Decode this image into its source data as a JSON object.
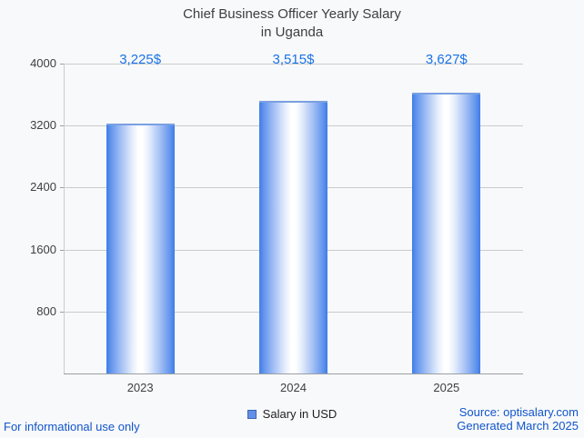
{
  "chart_data": {
    "type": "bar",
    "title": "Chief Business Officer Yearly Salary in Uganda",
    "title_lines": [
      "Chief Business Officer Yearly Salary",
      "in Uganda"
    ],
    "categories": [
      "2023",
      "2024",
      "2025"
    ],
    "values": [
      3225,
      3515,
      3627
    ],
    "value_labels": [
      "3,225$",
      "3,515$",
      "3,627$"
    ],
    "xlabel": "",
    "ylabel": "",
    "ylim": [
      0,
      4000
    ],
    "yticks": [
      4000,
      3200,
      2400,
      1600,
      800
    ],
    "grid": true,
    "legend": {
      "label": "Salary in USD",
      "position": "bottom"
    }
  },
  "footer": {
    "disclaimer": "For informational use only",
    "source": "Source: optisalary.com",
    "generated": "Generated March 2025"
  },
  "colors": {
    "background": "#f8f9fa",
    "accent_blue": "#1a73e8",
    "link_blue": "#1155cc",
    "bar_edge_blue": "#3f7ce6",
    "bar_mid_white": "#ffffff",
    "gridline_gray": "#cccccc",
    "axis_gray": "#9aa0a6",
    "text_dark": "#3c4043"
  }
}
